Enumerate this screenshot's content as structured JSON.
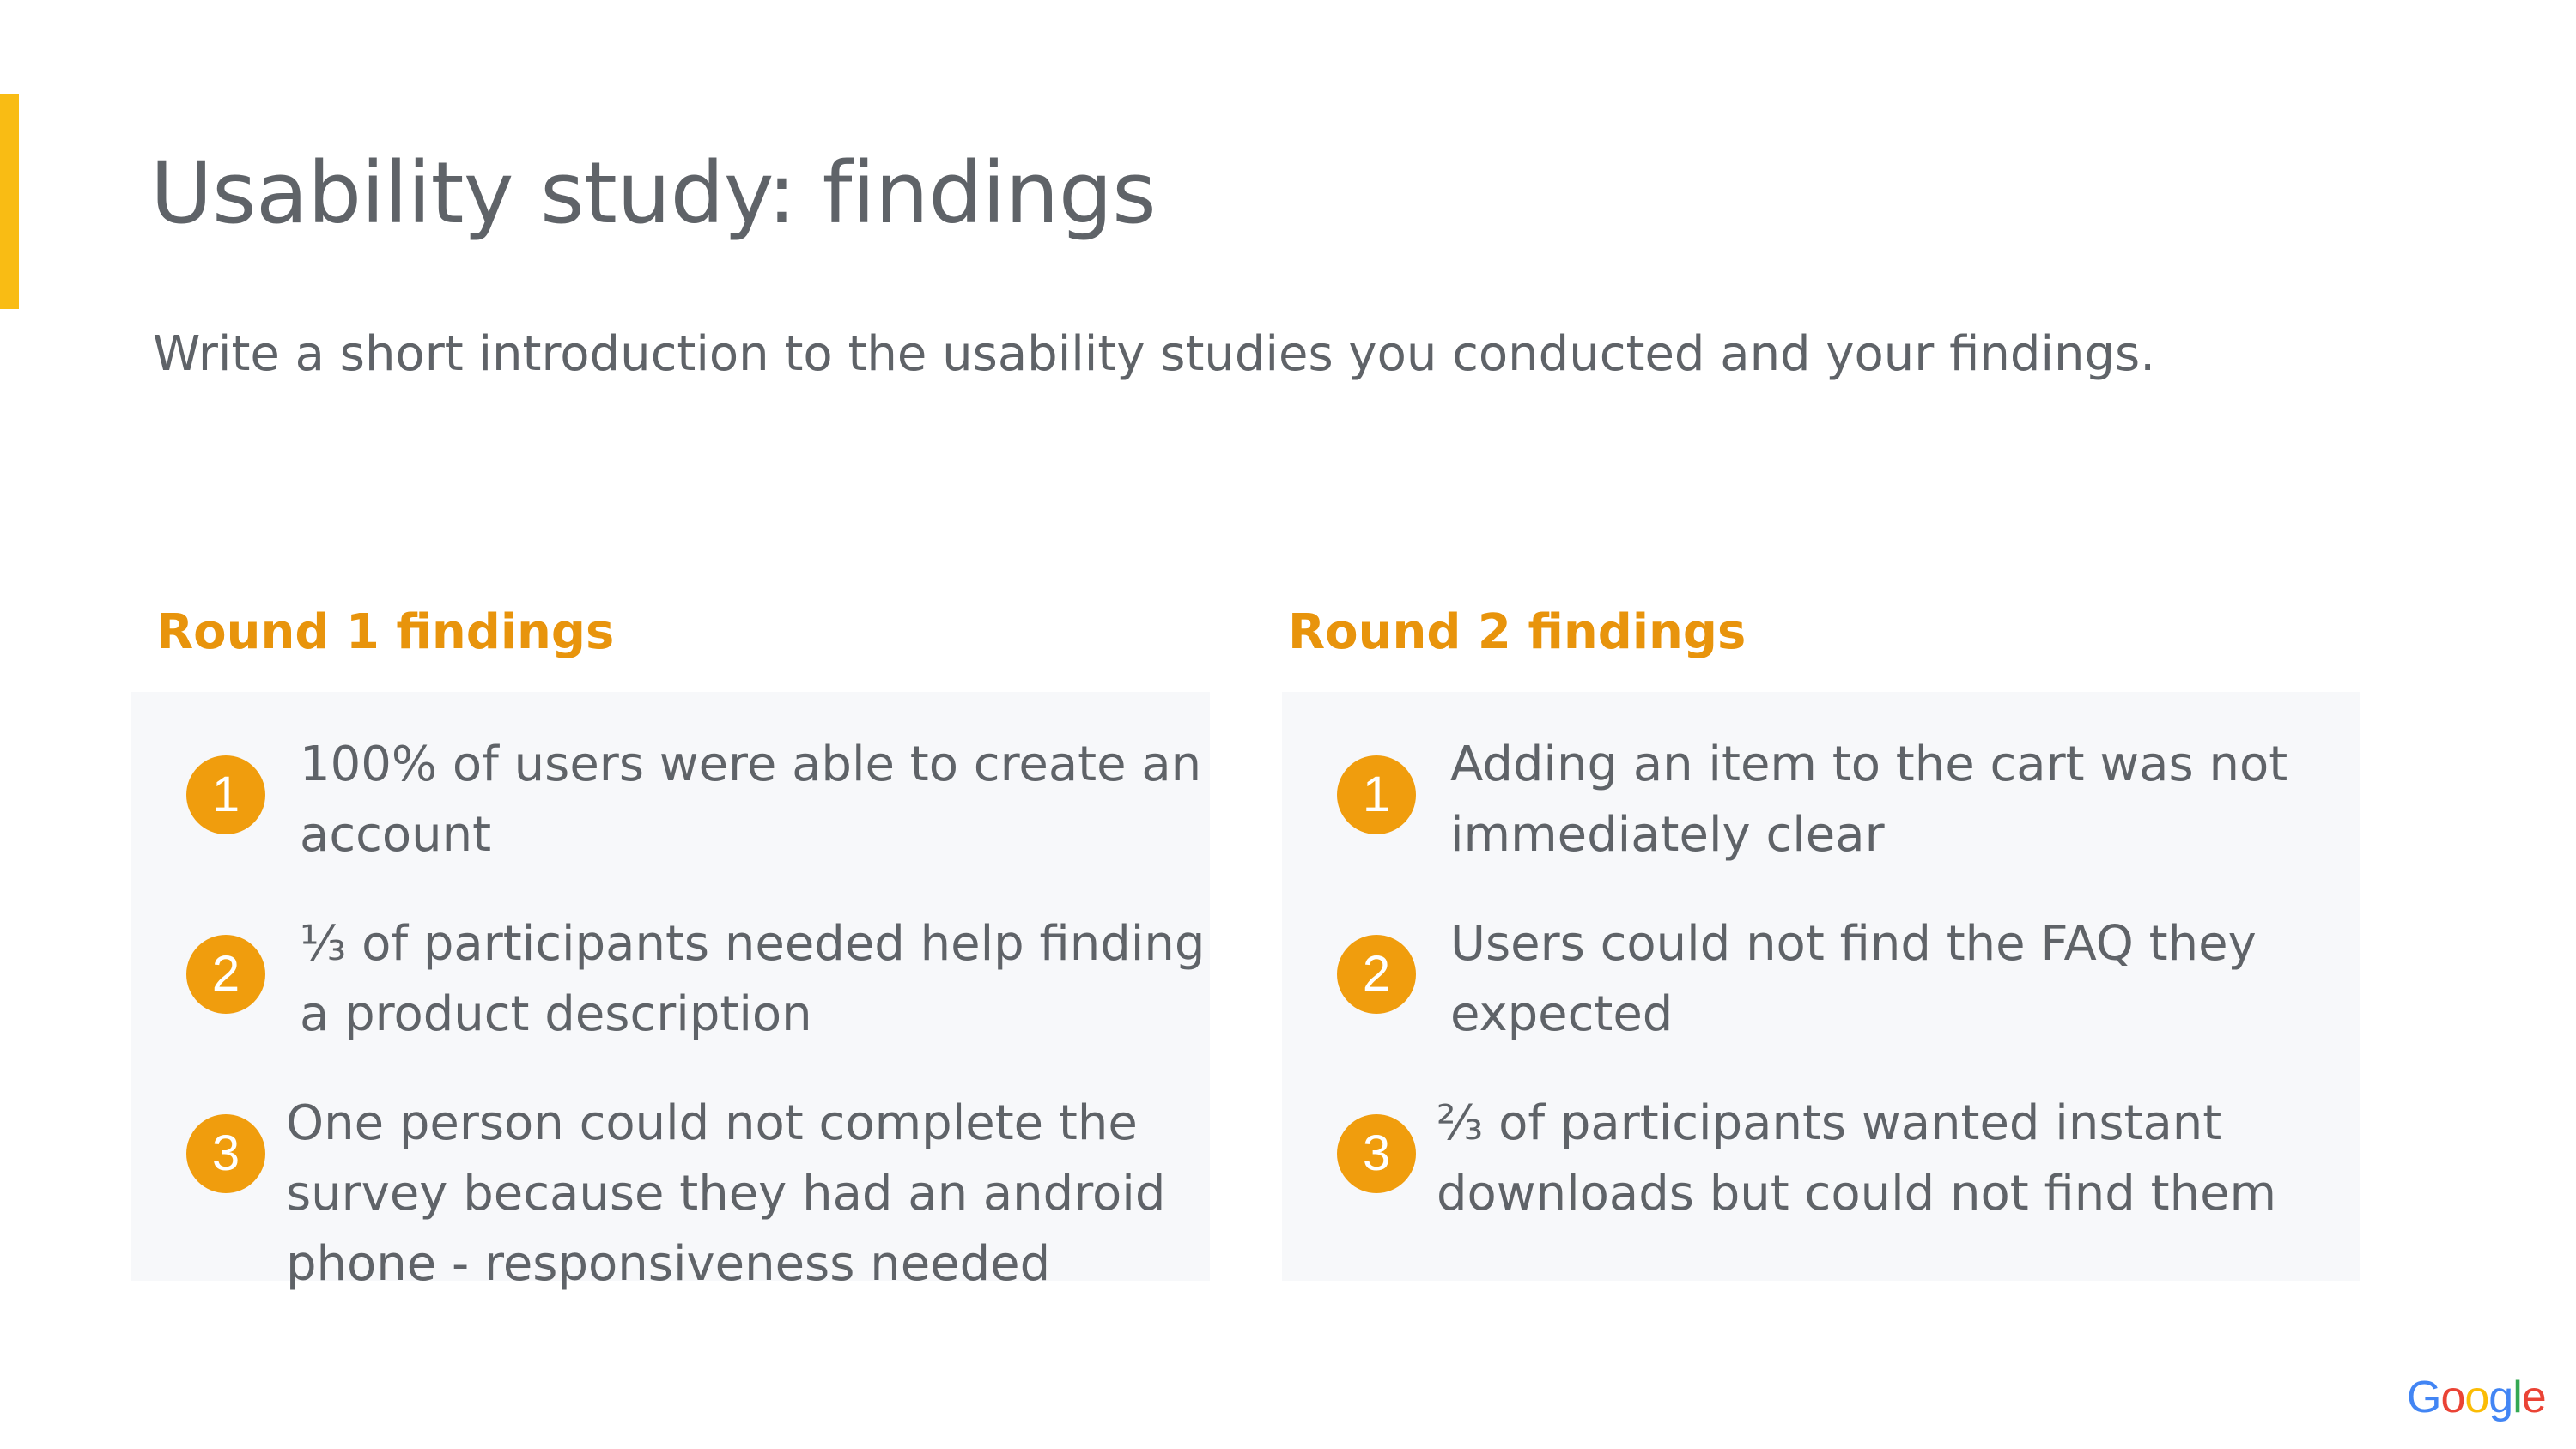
{
  "slide": {
    "title": "Usability study: findings",
    "subtitle": "Write a short introduction to the usability studies you conducted and your findings.",
    "accent_color": "#f9bc14"
  },
  "round1": {
    "heading": "Round 1 findings",
    "findings": [
      {
        "number": "1",
        "line1": "100% of users were able to create an",
        "line2": "account",
        "line3": ""
      },
      {
        "number": "2",
        "line1": "⅓ of participants needed help finding",
        "line2": "a product description",
        "line3": ""
      },
      {
        "number": "3",
        "line1": "One person could not complete the",
        "line2": "survey because they had an android",
        "line3": "phone - responsiveness needed"
      }
    ]
  },
  "round2": {
    "heading": "Round 2 findings",
    "findings": [
      {
        "number": "1",
        "line1": "Adding an item to the cart was not",
        "line2": "immediately clear",
        "line3": ""
      },
      {
        "number": "2",
        "line1": "Users could not find the FAQ they",
        "line2": "expected",
        "line3": ""
      },
      {
        "number": "3",
        "line1": "⅔ of participants wanted instant",
        "line2": "downloads but could not find them",
        "line3": ""
      }
    ]
  },
  "branding": {
    "logo_text": "Google",
    "logo_colors": [
      "#4285f4",
      "#ea4335",
      "#fbbc05",
      "#4285f4",
      "#34a853",
      "#ea4335"
    ]
  },
  "colors": {
    "heading": "#e8940c",
    "badge": "#f09d0d",
    "panel": "#f7f8fa",
    "text": "#5f6368"
  }
}
